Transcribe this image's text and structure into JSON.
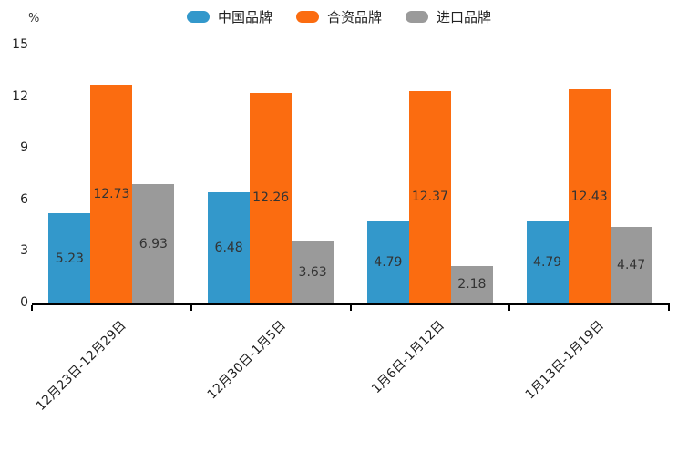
{
  "chart_data": {
    "type": "bar",
    "title": "",
    "unit_label": "%",
    "categories": [
      "12月23日-12月29日",
      "12月30日-1月5日",
      "1月6日-1月12日",
      "1月13日-1月19日"
    ],
    "series": [
      {
        "name": "中国品牌",
        "color": "#3398CB",
        "values": [
          5.23,
          6.48,
          4.79,
          4.79
        ]
      },
      {
        "name": "合资品牌",
        "color": "#FB6C10",
        "values": [
          12.73,
          12.26,
          12.37,
          12.43
        ]
      },
      {
        "name": "进口品牌",
        "color": "#9A9A9A",
        "values": [
          6.93,
          3.63,
          2.18,
          4.47
        ]
      }
    ],
    "y_ticks": [
      0,
      3,
      6,
      9,
      12,
      15
    ],
    "ylim": [
      0,
      15
    ],
    "legend_position": "top",
    "grid": false,
    "value_labels": "inside-center",
    "axis_color": "#000000",
    "text_color": "#333333"
  }
}
